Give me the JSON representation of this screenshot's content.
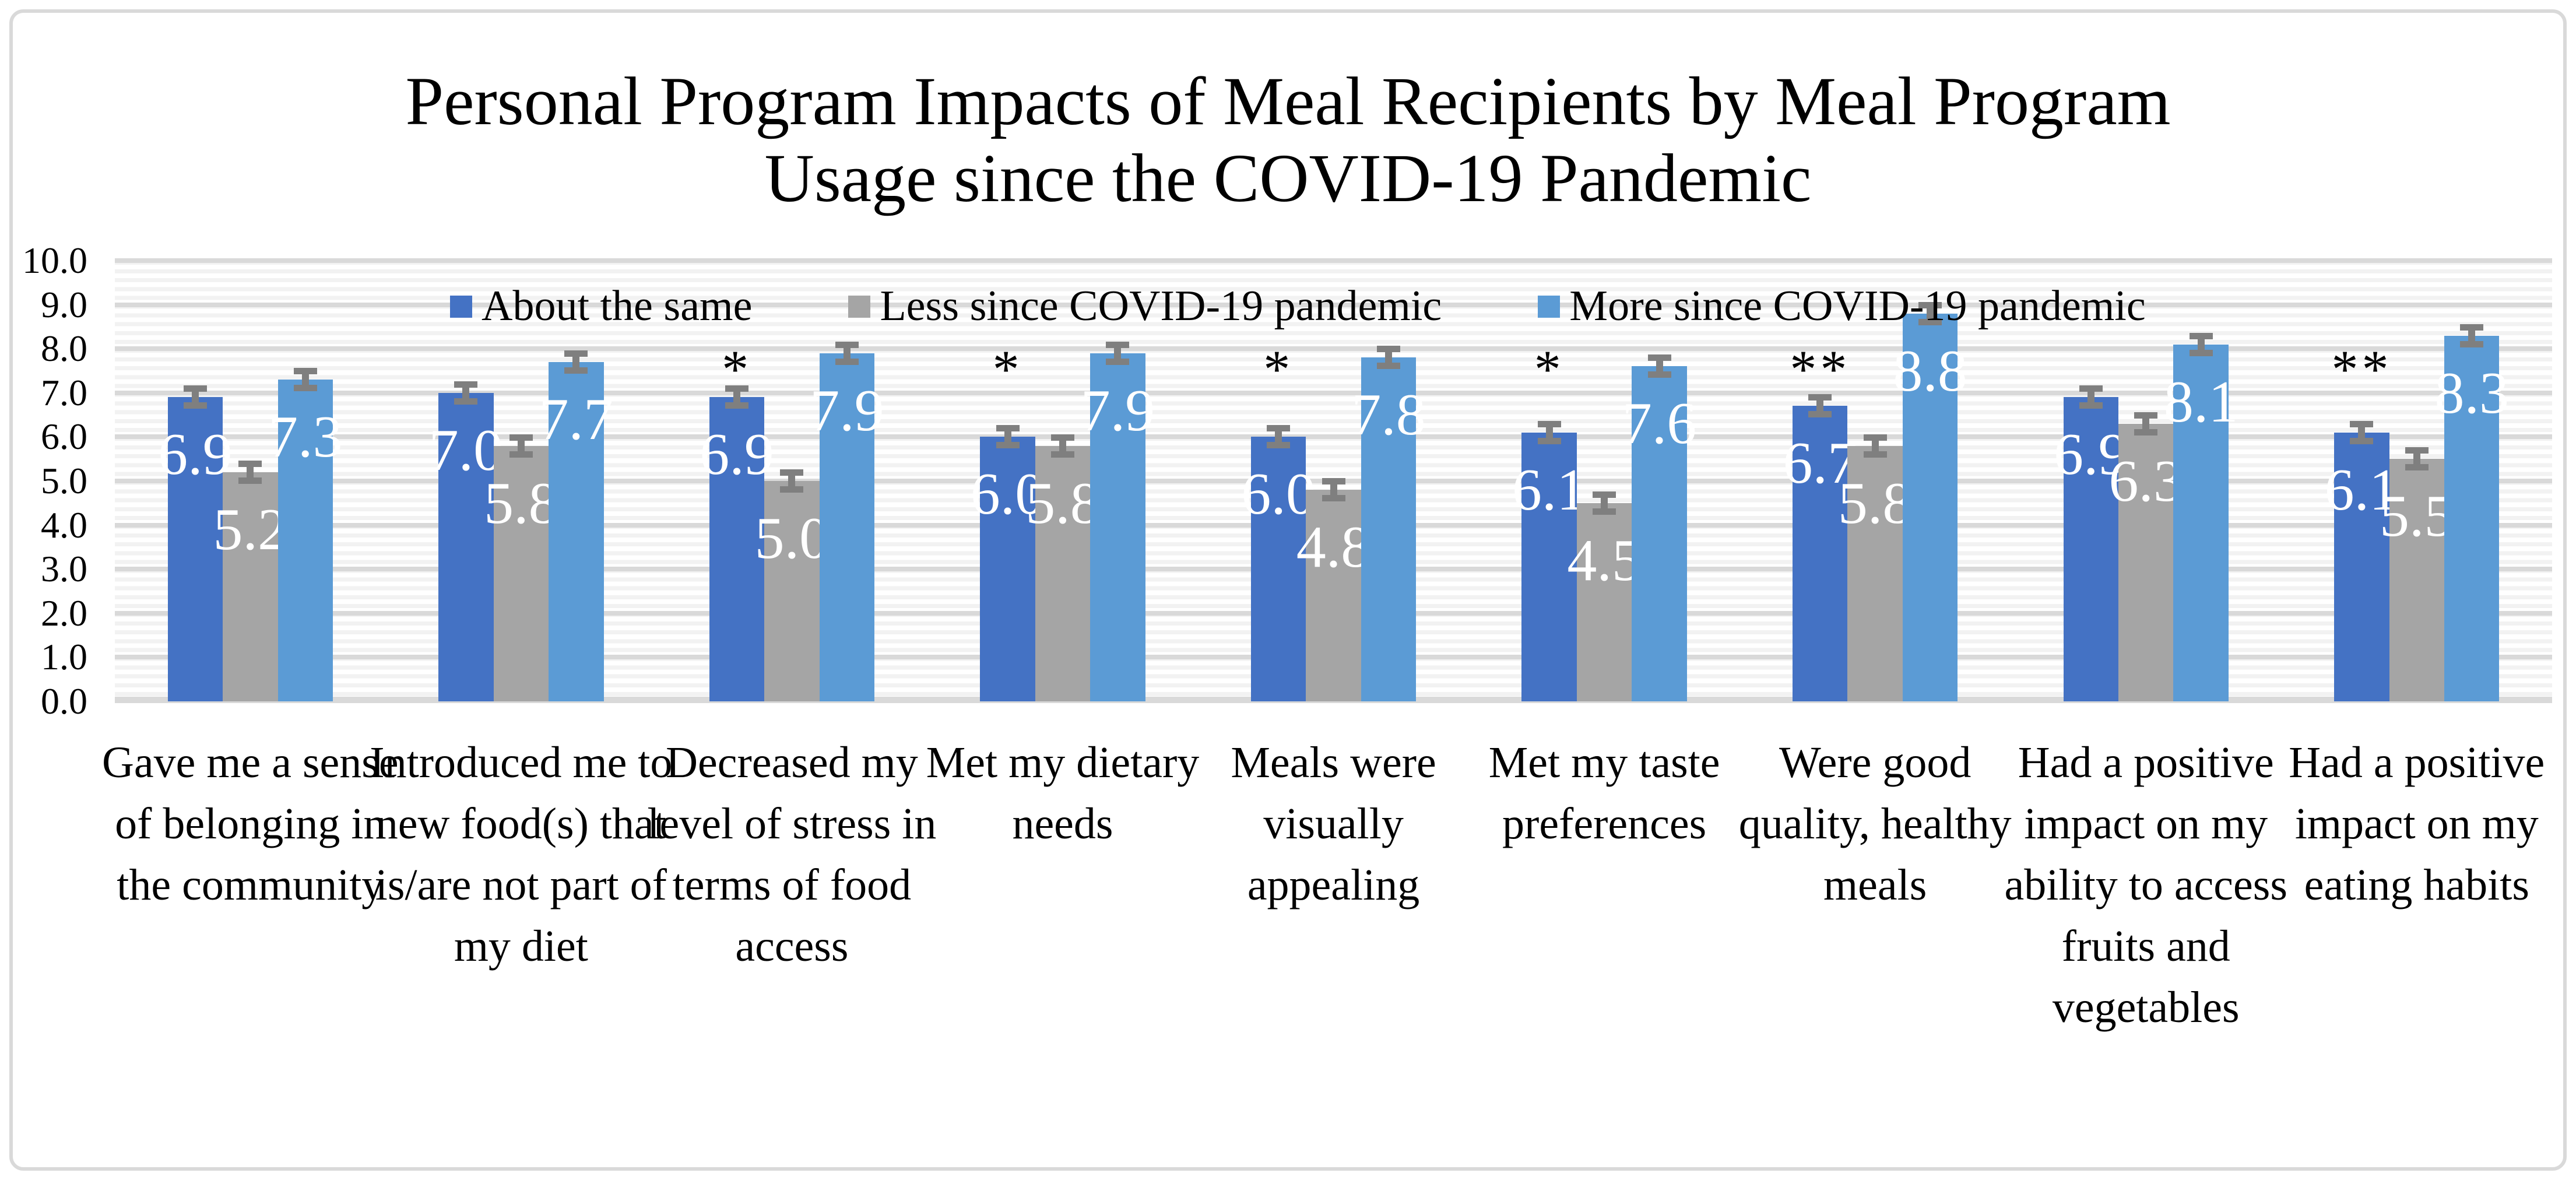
{
  "figure": {
    "title": "Personal Program Impacts of Meal Recipients by Meal Program Usage since the COVID-19 Pandemic",
    "title_line1": "Personal Program Impacts of Meal Recipients by Meal Program",
    "title_line2": "Usage since the COVID-19 Pandemic"
  },
  "chart_data": {
    "type": "bar",
    "title": "Personal Program Impacts of Meal Recipients by Meal Program Usage since the COVID-19 Pandemic",
    "xlabel": "",
    "ylabel": "",
    "ylim": [
      0,
      10
    ],
    "yticks": [
      "10.0",
      "9.0",
      "8.0",
      "7.0",
      "6.0",
      "5.0",
      "4.0",
      "3.0",
      "2.0",
      "1.0",
      "0.0"
    ],
    "grid": "horizontal, major lines every 1.0 with light minor stripes every 0.2",
    "legend_position": "top-inside",
    "categories": [
      "Gave me a sense of belonging in the community",
      "Introduced me to new food(s) that is/are not part of my diet",
      "Decreased my level of stress in terms of food access",
      "Met my dietary needs",
      "Meals were visually appealing",
      "Met my taste preferences",
      "Were good quality, healthy meals",
      "Had a positive impact on my ability to access fruits and vegetables",
      "Had a positive impact on my eating habits"
    ],
    "series": [
      {
        "name": "About the same",
        "color": "#4472C4",
        "values": [
          6.9,
          7.0,
          6.9,
          6.0,
          6.0,
          6.1,
          6.7,
          6.9,
          6.1
        ]
      },
      {
        "name": "Less since COVID-19 pandemic",
        "color": "#A5A5A5",
        "values": [
          5.2,
          5.8,
          5.0,
          5.8,
          4.8,
          4.5,
          5.8,
          6.3,
          5.5
        ]
      },
      {
        "name": "More since COVID-19 pandemic",
        "color": "#5B9BD5",
        "values": [
          7.3,
          7.7,
          7.9,
          7.9,
          7.8,
          7.6,
          8.8,
          8.1,
          8.3
        ]
      }
    ],
    "annotations": [
      "",
      "",
      "*",
      "*",
      "*",
      "*",
      "**",
      "",
      "**"
    ],
    "error_bars": {
      "shown": true,
      "approx_value": 0.2,
      "color": "#7F7F7F"
    },
    "value_label_color": "#FFFFFF",
    "colors": {
      "major_gridline": "#D9D9D9",
      "minor_stripe": "#F2F2F2",
      "frame_border": "#D9D9D9",
      "title_text": "#000000"
    }
  }
}
